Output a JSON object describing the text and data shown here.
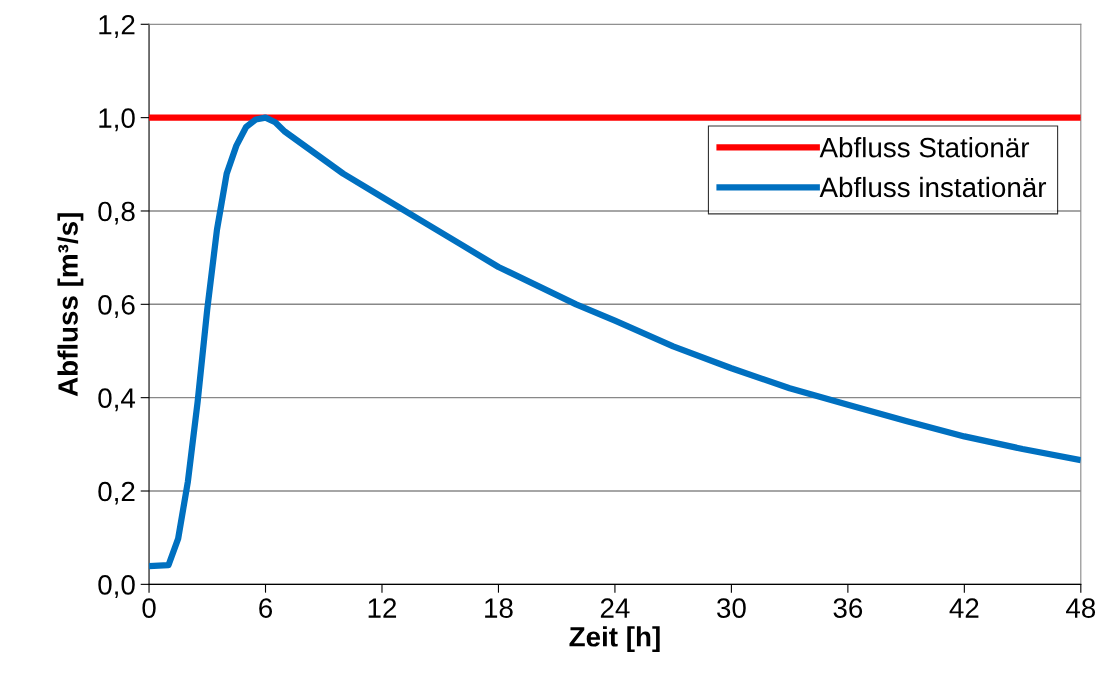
{
  "chart_data": {
    "type": "line",
    "xlabel": "Zeit [h]",
    "ylabel": "Abfluss [m³/s]",
    "xlim": [
      0,
      48
    ],
    "xticks": [
      0,
      6,
      12,
      18,
      24,
      30,
      36,
      42,
      48
    ],
    "ylim": [
      0,
      1.2
    ],
    "yticks": [
      {
        "value": 0,
        "label": "0,0"
      },
      {
        "value": 0.2,
        "label": "0,2"
      },
      {
        "value": 0.4,
        "label": "0,4"
      },
      {
        "value": 0.6,
        "label": "0,6"
      },
      {
        "value": 0.8,
        "label": "0,8"
      },
      {
        "value": 1.0,
        "label": "1,0"
      },
      {
        "value": 1.2,
        "label": "1,2"
      }
    ],
    "grid": "y",
    "legend": "right",
    "marker": "none",
    "line_style": "solid",
    "series": [
      {
        "name": "Abfluss Stationär",
        "color": "#ff0000",
        "x": [
          0,
          48
        ],
        "values": [
          1.0,
          1.0
        ]
      },
      {
        "name": "Abfluss instationär",
        "color": "#0070c0",
        "x": [
          0,
          1,
          1.5,
          2,
          2.5,
          3,
          3.5,
          4,
          4.5,
          5,
          5.5,
          6,
          6.5,
          7,
          8,
          9,
          10,
          12,
          14,
          16,
          18,
          20,
          22,
          24,
          27,
          30,
          33,
          36,
          39,
          42,
          45,
          48
        ],
        "values": [
          0.039,
          0.041,
          0.098,
          0.22,
          0.39,
          0.59,
          0.76,
          0.88,
          0.94,
          0.98,
          0.996,
          1.0,
          0.99,
          0.97,
          0.94,
          0.91,
          0.88,
          0.83,
          0.78,
          0.73,
          0.68,
          0.64,
          0.6,
          0.565,
          0.51,
          0.463,
          0.42,
          0.385,
          0.35,
          0.317,
          0.29,
          0.266
        ]
      }
    ]
  }
}
